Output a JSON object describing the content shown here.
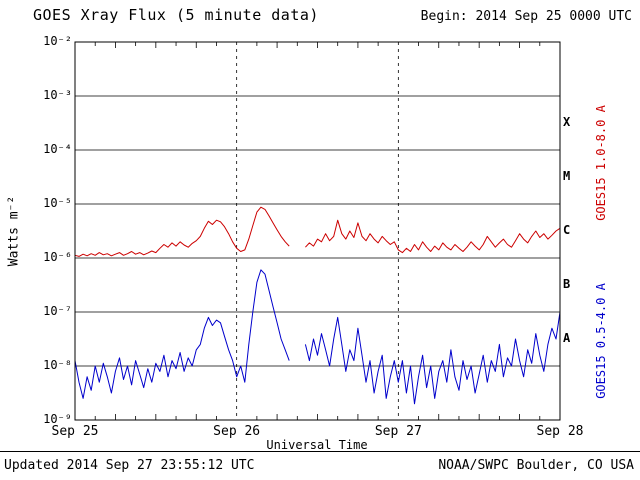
{
  "header": {
    "title": "GOES Xray Flux (5 minute data)",
    "begin": "Begin:  2014 Sep 25 0000 UTC"
  },
  "axes": {
    "ylabel": "Watts m⁻²",
    "xlabel": "Universal Time"
  },
  "legend": {
    "red": "GOES15 1.0-8.0 A",
    "blue": "GOES15 0.5-4.0 A"
  },
  "footer": {
    "updated": "Updated 2014 Sep 27 23:55:12 UTC",
    "source": "NOAA/SWPC Boulder, CO USA"
  },
  "chart_data": {
    "type": "line",
    "title": "GOES Xray Flux (5 minute data)",
    "xlabel": "Universal Time",
    "ylabel": "Watts m⁻²",
    "x_start_days": 0,
    "x_step_days": 0.025,
    "x_range_days": [
      0,
      3
    ],
    "x_tick_labels": [
      "Sep 25",
      "Sep 26",
      "Sep 27",
      "Sep 28"
    ],
    "y_log_range": [
      -9,
      -2
    ],
    "y_tick_labels": [
      "10⁻²",
      "10⁻³",
      "10⁻⁴",
      "10⁻⁵",
      "10⁻⁶",
      "10⁻⁷",
      "10⁻⁸",
      "10⁻⁹"
    ],
    "class_bands": [
      "X",
      "M",
      "C",
      "B",
      "A"
    ],
    "grid": true,
    "legend_position": "right-rotated",
    "colors": {
      "long": "#cc0000",
      "short": "#0000cc",
      "grid": "#000000"
    },
    "series": [
      {
        "name": "GOES15 1.0-8.0 A",
        "color": "#cc0000",
        "log10_flux": [
          -5.95,
          -5.97,
          -5.93,
          -5.96,
          -5.92,
          -5.95,
          -5.9,
          -5.94,
          -5.92,
          -5.96,
          -5.93,
          -5.9,
          -5.95,
          -5.92,
          -5.88,
          -5.93,
          -5.9,
          -5.94,
          -5.91,
          -5.87,
          -5.9,
          -5.82,
          -5.75,
          -5.8,
          -5.72,
          -5.78,
          -5.7,
          -5.76,
          -5.8,
          -5.73,
          -5.68,
          -5.6,
          -5.45,
          -5.32,
          -5.38,
          -5.3,
          -5.33,
          -5.42,
          -5.55,
          -5.7,
          -5.82,
          -5.88,
          -5.85,
          -5.65,
          -5.4,
          -5.15,
          -5.06,
          -5.1,
          -5.22,
          -5.35,
          -5.48,
          -5.6,
          -5.7,
          -5.78,
          null,
          null,
          null,
          -5.8,
          -5.72,
          -5.78,
          -5.65,
          -5.7,
          -5.55,
          -5.68,
          -5.6,
          -5.3,
          -5.55,
          -5.65,
          -5.5,
          -5.62,
          -5.35,
          -5.6,
          -5.68,
          -5.55,
          -5.65,
          -5.72,
          -5.6,
          -5.68,
          -5.75,
          -5.7,
          -5.85,
          -5.9,
          -5.82,
          -5.88,
          -5.75,
          -5.85,
          -5.7,
          -5.8,
          -5.88,
          -5.78,
          -5.85,
          -5.72,
          -5.8,
          -5.85,
          -5.75,
          -5.82,
          -5.88,
          -5.8,
          -5.7,
          -5.78,
          -5.85,
          -5.75,
          -5.6,
          -5.7,
          -5.8,
          -5.72,
          -5.65,
          -5.75,
          -5.8,
          -5.68,
          -5.55,
          -5.65,
          -5.72,
          -5.6,
          -5.5,
          -5.62,
          -5.55,
          -5.65,
          -5.58,
          -5.5,
          -5.45
        ]
      },
      {
        "name": "GOES15 0.5-4.0 A",
        "color": "#0000cc",
        "log10_flux": [
          -7.9,
          -8.3,
          -8.6,
          -8.2,
          -8.45,
          -8.0,
          -8.3,
          -7.95,
          -8.2,
          -8.5,
          -8.1,
          -7.85,
          -8.25,
          -8.0,
          -8.35,
          -7.9,
          -8.15,
          -8.4,
          -8.05,
          -8.3,
          -7.95,
          -8.1,
          -7.8,
          -8.2,
          -7.9,
          -8.05,
          -7.75,
          -8.1,
          -7.85,
          -8.0,
          -7.7,
          -7.6,
          -7.3,
          -7.1,
          -7.25,
          -7.15,
          -7.2,
          -7.45,
          -7.7,
          -7.9,
          -8.2,
          -8.0,
          -8.3,
          -7.6,
          -7.0,
          -6.45,
          -6.22,
          -6.3,
          -6.6,
          -6.9,
          -7.2,
          -7.5,
          -7.7,
          -7.9,
          null,
          null,
          null,
          -7.6,
          -7.9,
          -7.5,
          -7.8,
          -7.4,
          -7.7,
          -8.0,
          -7.5,
          -7.1,
          -7.6,
          -8.1,
          -7.7,
          -7.9,
          -7.3,
          -7.8,
          -8.3,
          -7.9,
          -8.5,
          -8.1,
          -7.8,
          -8.6,
          -8.2,
          -7.9,
          -8.3,
          -7.9,
          -8.5,
          -8.0,
          -8.7,
          -8.2,
          -7.8,
          -8.4,
          -8.0,
          -8.6,
          -8.1,
          -7.9,
          -8.3,
          -7.7,
          -8.2,
          -8.45,
          -7.9,
          -8.25,
          -8.0,
          -8.5,
          -8.15,
          -7.8,
          -8.3,
          -7.9,
          -8.1,
          -7.6,
          -8.2,
          -7.85,
          -8.0,
          -7.5,
          -7.9,
          -8.2,
          -7.7,
          -7.95,
          -7.4,
          -7.8,
          -8.1,
          -7.6,
          -7.3,
          -7.5,
          -7.0
        ]
      }
    ]
  }
}
